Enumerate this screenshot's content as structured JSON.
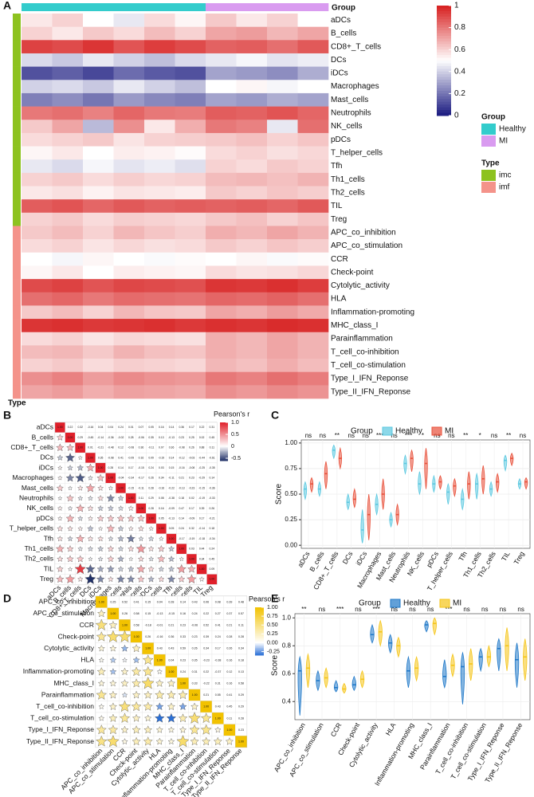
{
  "chart_data": [
    {
      "type": "heatmap",
      "label": "A",
      "group_title": "Group",
      "type_title": "Type",
      "rows": [
        "aDCs",
        "B_cells",
        "CD8+_T_cells",
        "DCs",
        "iDCs",
        "Macrophages",
        "Mast_cells",
        "Neutrophils",
        "NK_cells",
        "pDCs",
        "T_helper_cells",
        "Tfh",
        "Th1_cells",
        "Th2_cells",
        "TIL",
        "Treg",
        "APC_co_inhibition",
        "APC_co_stimulation",
        "CCR",
        "Check-point",
        "Cytolytic_activity",
        "HLA",
        "Inflammation-promoting",
        "MHC_class_I",
        "Parainflammation",
        "T_cell_co-inhibition",
        "T_cell_co-stimulation",
        "Type_I_IFN_Reponse",
        "Type_II_IFN_Reponse"
      ],
      "row_types": [
        "imc",
        "imc",
        "imc",
        "imc",
        "imc",
        "imc",
        "imc",
        "imc",
        "imc",
        "imc",
        "imc",
        "imc",
        "imc",
        "imc",
        "imc",
        "imc",
        "imf",
        "imf",
        "imf",
        "imf",
        "imf",
        "imf",
        "imf",
        "imf",
        "imf",
        "imf",
        "imf",
        "imf",
        "imf"
      ],
      "column_groups": [
        "Healthy",
        "Healthy",
        "Healthy",
        "Healthy",
        "Healthy",
        "Healthy",
        "MI",
        "MI",
        "MI",
        "MI"
      ],
      "values": [
        [
          0.55,
          0.6,
          0.5,
          0.45,
          0.58,
          0.52,
          0.62,
          0.55,
          0.6,
          0.5
        ],
        [
          0.6,
          0.55,
          0.62,
          0.58,
          0.65,
          0.6,
          0.7,
          0.72,
          0.66,
          0.7
        ],
        [
          0.92,
          0.9,
          0.95,
          0.88,
          0.93,
          0.9,
          0.85,
          0.86,
          0.82,
          0.87
        ],
        [
          0.42,
          0.38,
          0.45,
          0.4,
          0.36,
          0.42,
          0.45,
          0.48,
          0.44,
          0.46
        ],
        [
          0.12,
          0.15,
          0.1,
          0.18,
          0.14,
          0.12,
          0.3,
          0.28,
          0.25,
          0.32
        ],
        [
          0.4,
          0.42,
          0.38,
          0.45,
          0.4,
          0.36,
          0.5,
          0.52,
          0.48,
          0.5
        ],
        [
          0.22,
          0.25,
          0.2,
          0.28,
          0.24,
          0.22,
          0.3,
          0.28,
          0.32,
          0.3
        ],
        [
          0.8,
          0.82,
          0.78,
          0.84,
          0.8,
          0.79,
          0.86,
          0.85,
          0.88,
          0.84
        ],
        [
          0.62,
          0.7,
          0.35,
          0.75,
          0.55,
          0.68,
          0.8,
          0.78,
          0.45,
          0.82
        ],
        [
          0.58,
          0.6,
          0.62,
          0.56,
          0.6,
          0.61,
          0.62,
          0.64,
          0.6,
          0.63
        ],
        [
          0.52,
          0.55,
          0.5,
          0.54,
          0.53,
          0.51,
          0.58,
          0.6,
          0.57,
          0.59
        ],
        [
          0.45,
          0.42,
          0.48,
          0.44,
          0.46,
          0.43,
          0.6,
          0.58,
          0.62,
          0.6
        ],
        [
          0.6,
          0.62,
          0.58,
          0.61,
          0.59,
          0.6,
          0.65,
          0.66,
          0.64,
          0.67
        ],
        [
          0.55,
          0.57,
          0.53,
          0.56,
          0.55,
          0.54,
          0.62,
          0.6,
          0.63,
          0.61
        ],
        [
          0.86,
          0.88,
          0.84,
          0.87,
          0.85,
          0.86,
          0.85,
          0.86,
          0.84,
          0.87
        ],
        [
          0.6,
          0.62,
          0.58,
          0.61,
          0.6,
          0.59,
          0.62,
          0.64,
          0.6,
          0.63
        ],
        [
          0.62,
          0.65,
          0.6,
          0.66,
          0.63,
          0.61,
          0.68,
          0.66,
          0.7,
          0.67
        ],
        [
          0.58,
          0.6,
          0.56,
          0.59,
          0.57,
          0.58,
          0.62,
          0.6,
          0.63,
          0.61
        ],
        [
          0.5,
          0.48,
          0.52,
          0.5,
          0.49,
          0.51,
          0.5,
          0.52,
          0.49,
          0.51
        ],
        [
          0.52,
          0.55,
          0.5,
          0.54,
          0.53,
          0.52,
          0.58,
          0.56,
          0.57,
          0.59
        ],
        [
          0.9,
          0.92,
          0.88,
          0.91,
          0.9,
          0.89,
          0.95,
          0.94,
          0.96,
          0.93
        ],
        [
          0.82,
          0.84,
          0.8,
          0.83,
          0.82,
          0.81,
          0.84,
          0.83,
          0.85,
          0.82
        ],
        [
          0.62,
          0.65,
          0.6,
          0.66,
          0.63,
          0.62,
          0.7,
          0.68,
          0.72,
          0.69
        ],
        [
          0.95,
          0.96,
          0.94,
          0.95,
          0.96,
          0.94,
          0.96,
          0.95,
          0.97,
          0.96
        ],
        [
          0.58,
          0.6,
          0.56,
          0.59,
          0.58,
          0.57,
          0.68,
          0.66,
          0.7,
          0.67
        ],
        [
          0.65,
          0.66,
          0.62,
          0.67,
          0.64,
          0.63,
          0.68,
          0.66,
          0.7,
          0.67
        ],
        [
          0.6,
          0.62,
          0.58,
          0.61,
          0.6,
          0.59,
          0.66,
          0.64,
          0.68,
          0.65
        ],
        [
          0.75,
          0.78,
          0.72,
          0.76,
          0.74,
          0.73,
          0.8,
          0.78,
          0.82,
          0.79
        ],
        [
          0.7,
          0.72,
          0.68,
          0.71,
          0.7,
          0.69,
          0.75,
          0.73,
          0.76,
          0.74
        ]
      ],
      "group_legend": [
        {
          "name": "Healthy",
          "color": "#33cccc"
        },
        {
          "name": "MI",
          "color": "#d99bf0"
        }
      ],
      "type_legend": [
        {
          "name": "imc",
          "color": "#8dc21f"
        },
        {
          "name": "imf",
          "color": "#f4938a"
        }
      ],
      "zlim": [
        0,
        1
      ],
      "zticks": [
        1,
        0.8,
        0.6,
        0.4,
        0.2,
        0
      ],
      "colors": [
        "#1a1a80",
        "#ffffff",
        "#d71e1e"
      ]
    },
    {
      "type": "correlogram",
      "label": "B",
      "title": "Pearson's r",
      "rows": [
        "aDCs",
        "B_cells",
        "CD8+_T_cells",
        "DCs",
        "iDCs",
        "Macrophages",
        "Mast_cells",
        "Neutrophils",
        "NK_cells",
        "pDCs",
        "T_helper_cells",
        "Tfh",
        "Th1_cells",
        "Th2_cells",
        "TIL",
        "Treg"
      ],
      "upper": [
        [
          0.22,
          0.32,
          -0.16,
          0.04,
          0.04,
          0.24,
          0.01,
          0.07,
          0.05,
          0.16,
          0.14,
          0.36,
          0.17,
          0.22,
          0.31
        ],
        [
          0.29,
          -0.45,
          -0.14,
          -0.36,
          -0.02,
          0.28,
          -0.06,
          0.35,
          0.13,
          -0.13,
          0.23,
          0.25,
          0.02,
          0.45
        ],
        [
          0.01,
          -0.21,
          -0.48,
          0.12,
          -0.08,
          0.36,
          -0.11,
          0.07,
          0.36,
          -0.08,
          0.26,
          0.88,
          0.11
        ],
        [
          0.35,
          -0.08,
          0.41,
          -0.09,
          0.16,
          0.09,
          -0.19,
          0.14,
          -0.12,
          -0.03,
          -0.44,
          -0.61
        ],
        [
          0.28,
          0.14,
          0.17,
          -0.15,
          0.24,
          0.03,
          0.15,
          -0.16,
          -0.08,
          -0.25,
          -0.35
        ],
        [
          -0.04,
          -0.34,
          -0.17,
          0.26,
          0.34,
          -0.11,
          0.21,
          0.23,
          -0.29,
          0.14
        ],
        [
          -0.15,
          -0.11,
          0.28,
          -0.16,
          -0.22,
          -0.13,
          -0.23,
          -0.15,
          -0.36
        ],
        [
          0.11,
          0.29,
          0.08,
          -0.38,
          0.18,
          0.02,
          -0.19,
          -0.33
        ],
        [
          0.28,
          0.16,
          -0.09,
          0.47,
          0.17,
          0.39,
          0.26
        ],
        [
          0.05,
          -0.13,
          0.14,
          -0.09,
          0.17,
          -0.21
        ],
        [
          0.05,
          0.24,
          0.32,
          -0.14,
          0.18
        ],
        [
          -0.17,
          -0.19,
          -0.18,
          -0.34
        ],
        [
          0.03,
          0.44,
          0.24
        ],
        [
          0.34,
          0.45
        ],
        [
          0.09
        ],
        []
      ],
      "diag": {
        "value": 1,
        "label": "1.00"
      },
      "zlim": [
        -0.6,
        1
      ],
      "zticks": [
        {
          "value": 1,
          "label": "1.0"
        },
        0.5,
        0,
        -0.5
      ],
      "colors": [
        "#1f2f66",
        "#ffffff",
        "#e0202a"
      ]
    },
    {
      "type": "violin",
      "label": "C",
      "legend_title": "Group",
      "ylabel": "Score",
      "categories": [
        "aDCs",
        "B_cells",
        "CD8+_T_cells",
        "DCs",
        "iDCs",
        "Macrophages",
        "Mast_cells",
        "Neutrophils",
        "NK_cells",
        "pDCs",
        "T_helper_cells",
        "Tfh",
        "Th1_cells",
        "Th2_cells",
        "TIL",
        "Treg"
      ],
      "significance": [
        "ns",
        "ns",
        "**",
        "ns",
        "ns",
        "***",
        "ns",
        "***",
        "*",
        "ns",
        "ns",
        "**",
        "*",
        "ns",
        "**",
        "ns"
      ],
      "series": [
        {
          "name": "Healthy",
          "color": "#5bc8e0",
          "values": [
            0.55,
            0.55,
            0.93,
            0.42,
            0.15,
            0.4,
            0.25,
            0.8,
            0.6,
            0.6,
            0.52,
            0.45,
            0.6,
            0.55,
            0.83,
            0.6
          ],
          "low": [
            0.45,
            0.48,
            0.85,
            0.35,
            0.02,
            0.3,
            0.18,
            0.7,
            0.5,
            0.52,
            0.4,
            0.35,
            0.45,
            0.48,
            0.73,
            0.55
          ],
          "high": [
            0.62,
            0.62,
            0.98,
            0.5,
            0.35,
            0.5,
            0.32,
            0.88,
            0.72,
            0.68,
            0.6,
            0.55,
            0.7,
            0.62,
            0.88,
            0.65
          ]
        },
        {
          "name": "MI",
          "color": "#e8503a",
          "values": [
            0.6,
            0.7,
            0.85,
            0.45,
            0.3,
            0.5,
            0.3,
            0.85,
            0.8,
            0.62,
            0.58,
            0.6,
            0.65,
            0.62,
            0.85,
            0.62
          ],
          "low": [
            0.52,
            0.55,
            0.75,
            0.37,
            0.05,
            0.35,
            0.2,
            0.72,
            0.55,
            0.55,
            0.48,
            0.45,
            0.5,
            0.52,
            0.78,
            0.55
          ],
          "high": [
            0.66,
            0.82,
            0.95,
            0.55,
            0.5,
            0.65,
            0.4,
            0.93,
            0.95,
            0.68,
            0.65,
            0.72,
            0.78,
            0.7,
            0.9,
            0.66
          ]
        }
      ],
      "ylim": [
        -0.03,
        1.03
      ],
      "yticks": [
        {
          "value": 0,
          "label": "0.00"
        },
        0.25,
        {
          "value": 0.5,
          "label": "0.50"
        },
        0.75,
        {
          "value": 1,
          "label": "1.00"
        }
      ],
      "grid": true
    },
    {
      "type": "correlogram",
      "label": "D",
      "title": "Pearson's r",
      "rows": [
        "APC_co_inhibition",
        "APC_co_stimulation",
        "CCR",
        "Check-point",
        "Cytolytic_activity",
        "HLA",
        "Inflammation-promoting",
        "MHC_class_I",
        "Parainflammation",
        "T_cell_co-inhibition",
        "T_cell_co-stimulation",
        "Type_I_IFN_Reponse",
        "Type_II_IFN_Reponse"
      ],
      "upper": [
        [
          0.25,
          0.52,
          0.41,
          0.15,
          0.04,
          0.28,
          0.14,
          0.43,
          0.06,
          0.08,
          0.39,
          0.48
        ],
        [
          0.26,
          0.58,
          0.15,
          -0.13,
          -0.15,
          0.16,
          0.24,
          0.22,
          0.27,
          0.37,
          0.57
        ],
        [
          0.58,
          -0.18,
          -0.01,
          0.21,
          0.23,
          -0.06,
          0.52,
          0.41,
          0.21,
          0.11
        ],
        [
          0.26,
          -0.16,
          0.36,
          0.33,
          0.23,
          0.39,
          0.24,
          0.28,
          0.28
        ],
        [
          0.43,
          0.43,
          0.59,
          0.26,
          0.34,
          0.17,
          0.26,
          0.34
        ],
        [
          0.04,
          0.23,
          0.35,
          -0.23,
          -0.38,
          0.16,
          0.18
        ],
        [
          0.24,
          0.31,
          0.22,
          -0.37,
          0.12,
          0.13
        ],
        [
          0.33,
          -0.22,
          0.31,
          0.16,
          0.58
        ],
        [
          0.21,
          0.55,
          0.41,
          0.29
        ],
        [
          0.43,
          0.45,
          0.29
        ],
        [
          0.11,
          0.28
        ],
        [
          0.23
        ],
        []
      ],
      "diag": {
        "value": 1,
        "label": "1.00"
      },
      "zlim": [
        -0.35,
        1
      ],
      "zticks": [
        {
          "value": 1,
          "label": "1.00"
        },
        0.75,
        {
          "value": 0.5,
          "label": "0.50"
        },
        0.25,
        {
          "value": 0,
          "label": "0.00"
        },
        -0.25
      ],
      "colors": [
        "#2a6fd6",
        "#ffffff",
        "#f2c200"
      ]
    },
    {
      "type": "violin",
      "label": "E",
      "legend_title": "Group",
      "ylabel": "Score",
      "categories": [
        "APC_co_inhibition",
        "APC_co_stimulation",
        "CCR",
        "Check-point",
        "Cytolytic_activity",
        "HLA",
        "Inflammation-promoting",
        "MHC_class_I",
        "Parainflammation",
        "T_cell_co-inhibition",
        "T_cell_co-stimulation",
        "Type_I_IFN_Reponse",
        "Type_II_IFN_Reponse"
      ],
      "significance": [
        "**",
        "ns",
        "***",
        "ns",
        "***",
        "ns",
        "ns",
        "ns",
        "***",
        "ns",
        "ns",
        "ns",
        "ns"
      ],
      "series": [
        {
          "name": "Healthy",
          "color": "#1f78c8",
          "values": [
            0.62,
            0.55,
            0.5,
            0.52,
            0.88,
            0.82,
            0.62,
            0.95,
            0.58,
            0.65,
            0.72,
            0.78,
            0.7
          ],
          "low": [
            0.3,
            0.48,
            0.47,
            0.48,
            0.82,
            0.75,
            0.5,
            0.9,
            0.5,
            0.38,
            0.62,
            0.62,
            0.5
          ],
          "high": [
            0.72,
            0.62,
            0.55,
            0.58,
            0.95,
            0.88,
            0.72,
            0.98,
            0.7,
            0.75,
            0.78,
            0.85,
            0.82
          ]
        },
        {
          "name": "MI",
          "color": "#f5c518",
          "values": [
            0.64,
            0.57,
            0.49,
            0.56,
            0.9,
            0.8,
            0.64,
            0.96,
            0.66,
            0.67,
            0.72,
            0.8,
            0.72
          ],
          "low": [
            0.5,
            0.5,
            0.46,
            0.5,
            0.8,
            0.72,
            0.55,
            0.88,
            0.58,
            0.55,
            0.65,
            0.62,
            0.55
          ],
          "high": [
            0.74,
            0.64,
            0.53,
            0.62,
            0.98,
            0.86,
            0.72,
            1,
            0.74,
            0.78,
            0.8,
            0.93,
            0.85
          ]
        }
      ],
      "ylim": [
        0.27,
        1.03
      ],
      "yticks": [
        0.4,
        0.6,
        0.8,
        {
          "value": 1,
          "label": "1.0"
        }
      ],
      "grid": true
    }
  ]
}
